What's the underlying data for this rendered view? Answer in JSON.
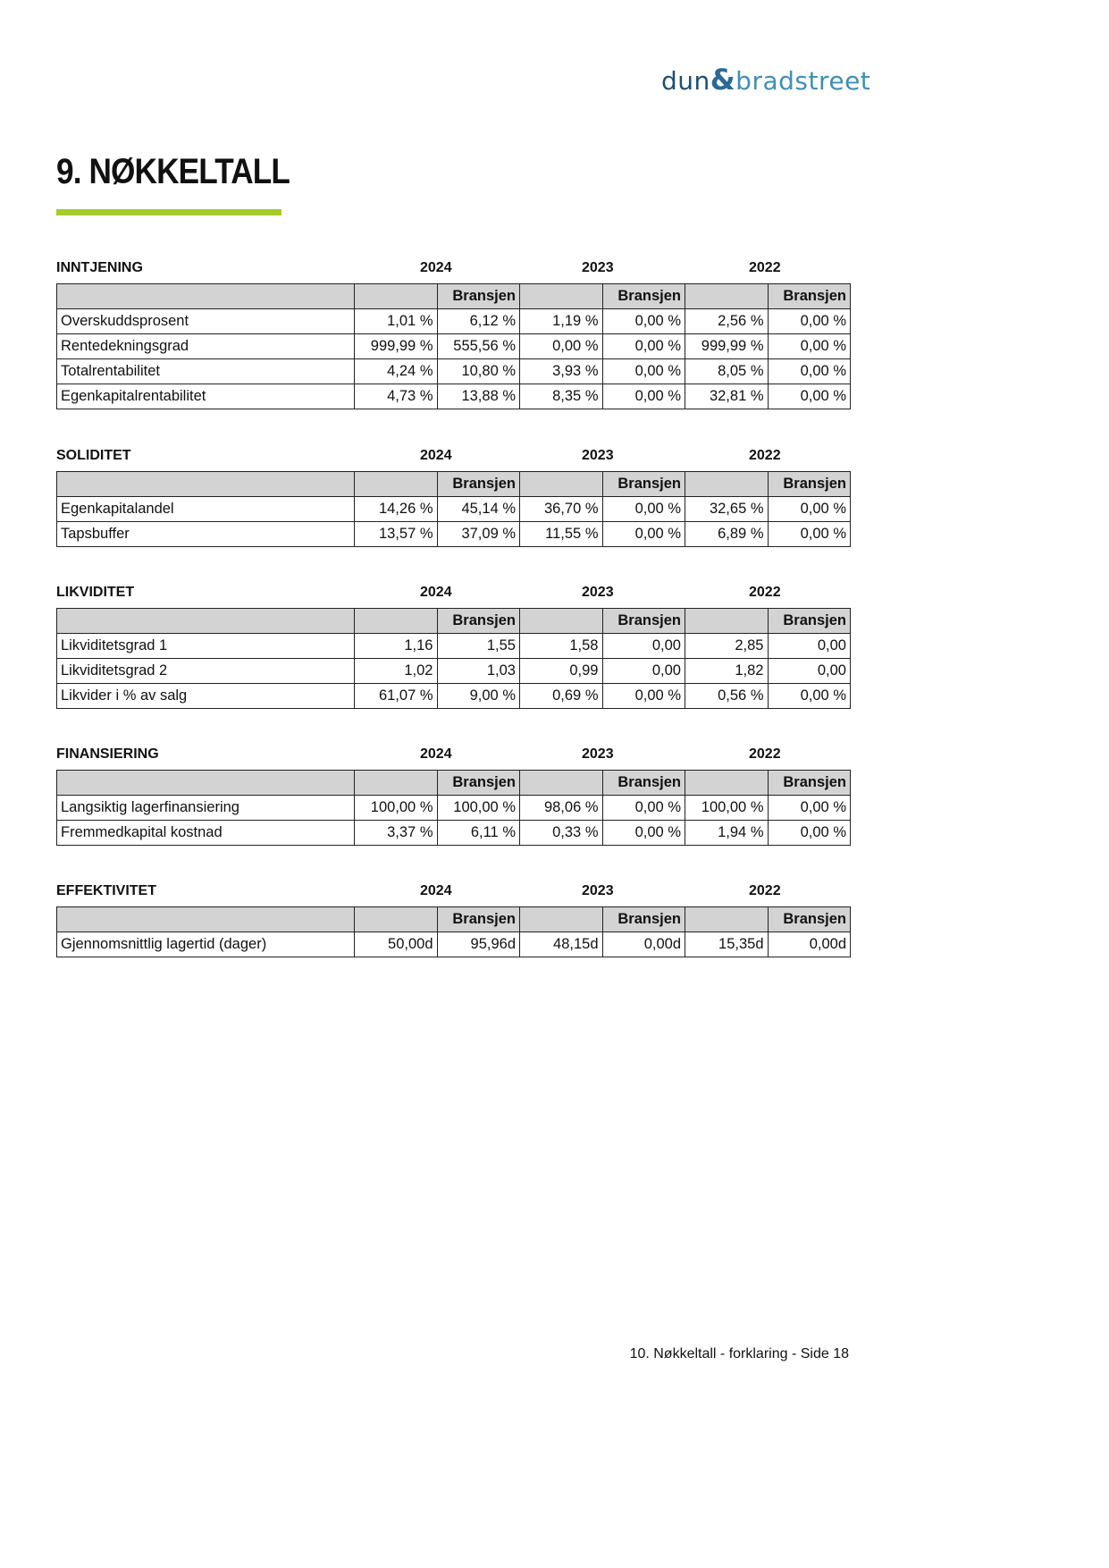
{
  "logo": {
    "part1": "dun",
    "amp": "&",
    "part2": "bradstreet"
  },
  "title": "9. NØKKELTALL",
  "bransjen": "Bransjen",
  "years": [
    "2024",
    "2023",
    "2022"
  ],
  "sections": [
    {
      "name": "INNTJENING",
      "rows": [
        [
          "Overskuddsprosent",
          "1,01 %",
          "6,12 %",
          "1,19 %",
          "0,00 %",
          "2,56 %",
          "0,00 %"
        ],
        [
          "Rentedekningsgrad",
          "999,99 %",
          "555,56 %",
          "0,00 %",
          "0,00 %",
          "999,99 %",
          "0,00 %"
        ],
        [
          "Totalrentabilitet",
          "4,24 %",
          "10,80 %",
          "3,93 %",
          "0,00 %",
          "8,05 %",
          "0,00 %"
        ],
        [
          "Egenkapitalrentabilitet",
          "4,73 %",
          "13,88 %",
          "8,35 %",
          "0,00 %",
          "32,81 %",
          "0,00 %"
        ]
      ]
    },
    {
      "name": "SOLIDITET",
      "rows": [
        [
          "Egenkapitalandel",
          "14,26 %",
          "45,14 %",
          "36,70 %",
          "0,00 %",
          "32,65 %",
          "0,00 %"
        ],
        [
          "Tapsbuffer",
          "13,57 %",
          "37,09 %",
          "11,55 %",
          "0,00 %",
          "6,89 %",
          "0,00 %"
        ]
      ]
    },
    {
      "name": "LIKVIDITET",
      "rows": [
        [
          "Likviditetsgrad 1",
          "1,16",
          "1,55",
          "1,58",
          "0,00",
          "2,85",
          "0,00"
        ],
        [
          "Likviditetsgrad 2",
          "1,02",
          "1,03",
          "0,99",
          "0,00",
          "1,82",
          "0,00"
        ],
        [
          "Likvider i % av salg",
          "61,07 %",
          "9,00 %",
          "0,69 %",
          "0,00 %",
          "0,56 %",
          "0,00 %"
        ]
      ]
    },
    {
      "name": "FINANSIERING",
      "rows": [
        [
          "Langsiktig lagerfinansiering",
          "100,00 %",
          "100,00 %",
          "98,06 %",
          "0,00 %",
          "100,00 %",
          "0,00 %"
        ],
        [
          "Fremmedkapital kostnad",
          "3,37 %",
          "6,11 %",
          "0,33 %",
          "0,00 %",
          "1,94 %",
          "0,00 %"
        ]
      ]
    },
    {
      "name": "EFFEKTIVITET",
      "rows": [
        [
          "Gjennomsnittlig lagertid (dager)",
          "50,00d",
          "95,96d",
          "48,15d",
          "0,00d",
          "15,35d",
          "0,00d"
        ]
      ]
    }
  ],
  "footer": "10. Nøkkeltall - forklaring - Side 18"
}
